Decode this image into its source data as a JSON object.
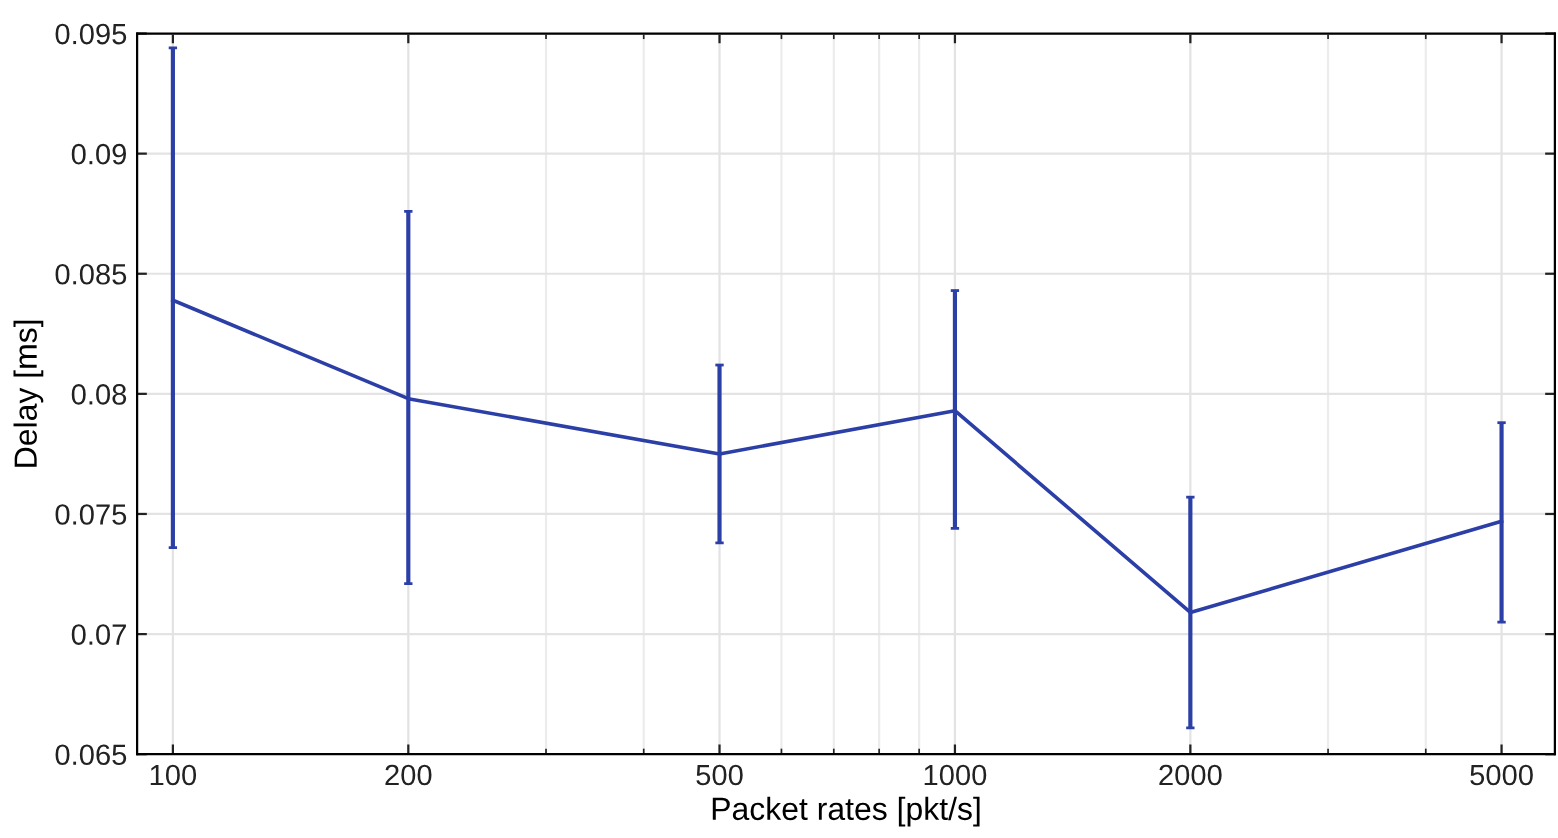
{
  "chart_data": {
    "type": "line",
    "xlabel": "Packet rates [pkt/s]",
    "ylabel": "Delay [ms]",
    "log": "x",
    "x": [
      100,
      200,
      500,
      1000,
      2000,
      5000
    ],
    "series": [
      {
        "color": "#2b3fa6",
        "values": [
          0.0839,
          0.0798,
          0.0775,
          0.0793,
          0.0709,
          0.0747
        ],
        "errors": [
          [
            0.0736,
            0.0944
          ],
          [
            0.0721,
            0.0876
          ],
          [
            0.0738,
            0.0812
          ],
          [
            0.0744,
            0.0843
          ],
          [
            0.0661,
            0.0757
          ],
          [
            0.0705,
            0.0788
          ]
        ]
      }
    ],
    "xlim": [
      90,
      5850
    ],
    "xticks": [
      100,
      200,
      500,
      1000,
      2000,
      5000
    ],
    "ylim": [
      0.065,
      0.095
    ],
    "yticks": [
      0.065,
      0.07,
      0.075,
      0.08,
      0.085,
      0.09,
      0.095
    ],
    "grid": true,
    "marker": "none",
    "line_style": "solid"
  }
}
